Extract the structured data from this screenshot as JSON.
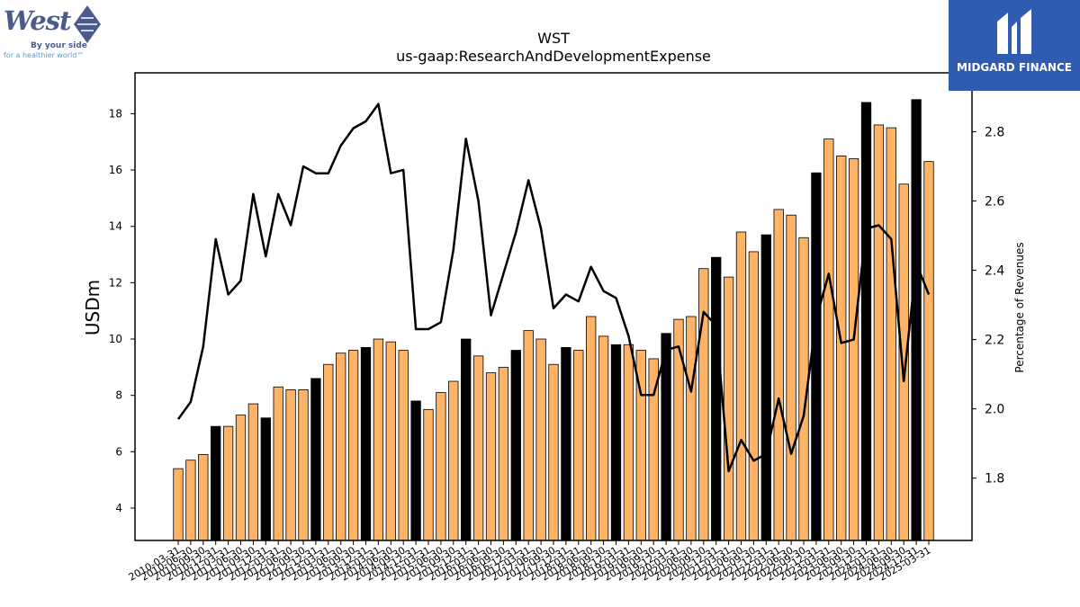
{
  "title": "WST",
  "subtitle": "us-gaap:ResearchAndDevelopmentExpense",
  "logos": {
    "left": {
      "name": "West",
      "tagline1": "By your side",
      "tagline2": "for a healthier world™"
    },
    "right": {
      "name": "MIDGARD FINANCE",
      "bg_color": "#2f5bb0"
    }
  },
  "chart_data": {
    "type": "bar",
    "ylabel": "USDm",
    "y2label": "Percentage of Revenues",
    "ylim": [
      2.85,
      19.45
    ],
    "y2lim": [
      1.62,
      2.97
    ],
    "yticks": [
      4,
      6,
      8,
      10,
      12,
      14,
      16,
      18
    ],
    "y2ticks": [
      1.8,
      2.0,
      2.2,
      2.4,
      2.6,
      2.8
    ],
    "bar_color": "#ffb366",
    "q4_bar_color": "#000000",
    "line_color": "#000000",
    "categories": [
      "2010-03-31",
      "2010-06-30",
      "2010-09-30",
      "2010-12-31",
      "2011-03-31",
      "2011-06-30",
      "2011-09-30",
      "2011-12-31",
      "2012-03-31",
      "2012-06-30",
      "2012-09-30",
      "2012-12-31",
      "2013-03-31",
      "2013-06-30",
      "2013-09-30",
      "2013-12-31",
      "2014-03-31",
      "2014-06-30",
      "2014-09-30",
      "2014-12-31",
      "2015-03-31",
      "2015-06-30",
      "2015-09-30",
      "2015-12-31",
      "2016-03-31",
      "2016-06-30",
      "2016-09-30",
      "2016-12-31",
      "2017-03-31",
      "2017-06-30",
      "2017-09-30",
      "2017-12-31",
      "2018-03-31",
      "2018-06-30",
      "2018-09-30",
      "2018-12-31",
      "2019-03-31",
      "2019-06-30",
      "2019-09-30",
      "2019-12-31",
      "2020-03-31",
      "2020-06-30",
      "2020-09-30",
      "2020-12-31",
      "2021-03-31",
      "2021-06-30",
      "2021-09-30",
      "2021-12-31",
      "2022-03-31",
      "2022-06-30",
      "2022-09-30",
      "2022-12-31",
      "2023-03-31",
      "2023-06-30",
      "2023-09-30",
      "2023-12-31",
      "2024-03-31",
      "2024-06-30",
      "2024-09-30",
      "2024-12-31",
      "2025-03-31"
    ],
    "values": [
      5.4,
      5.7,
      5.9,
      6.9,
      6.9,
      7.3,
      7.7,
      7.2,
      8.3,
      8.2,
      8.2,
      8.6,
      9.1,
      9.5,
      9.6,
      9.7,
      10.0,
      9.9,
      9.6,
      7.8,
      7.5,
      8.1,
      8.5,
      10.0,
      9.4,
      8.8,
      9.0,
      9.6,
      10.3,
      10.0,
      9.1,
      9.7,
      9.6,
      10.8,
      10.1,
      9.8,
      9.8,
      9.6,
      9.3,
      10.2,
      10.7,
      10.8,
      12.5,
      12.9,
      12.2,
      13.8,
      13.1,
      13.7,
      14.6,
      14.4,
      13.6,
      15.9,
      17.1,
      16.5,
      16.4,
      18.4,
      17.6,
      17.5,
      15.5,
      18.5,
      16.3
    ],
    "q4_flags": [
      0,
      0,
      0,
      1,
      0,
      0,
      0,
      1,
      0,
      0,
      0,
      1,
      0,
      0,
      0,
      1,
      0,
      0,
      0,
      1,
      0,
      0,
      0,
      1,
      0,
      0,
      0,
      1,
      0,
      0,
      0,
      1,
      0,
      0,
      0,
      1,
      0,
      0,
      0,
      1,
      0,
      0,
      0,
      1,
      0,
      0,
      0,
      1,
      0,
      0,
      0,
      1,
      0,
      0,
      0,
      1,
      0,
      0,
      0,
      1,
      0
    ],
    "line_values": [
      1.97,
      2.02,
      2.18,
      2.49,
      2.33,
      2.37,
      2.62,
      2.44,
      2.62,
      2.53,
      2.7,
      2.68,
      2.68,
      2.76,
      2.81,
      2.83,
      2.88,
      2.68,
      2.69,
      2.23,
      2.23,
      2.25,
      2.46,
      2.78,
      2.6,
      2.27,
      2.39,
      2.51,
      2.66,
      2.52,
      2.29,
      2.33,
      2.31,
      2.41,
      2.34,
      2.32,
      2.21,
      2.04,
      2.04,
      2.17,
      2.18,
      2.05,
      2.28,
      2.24,
      1.82,
      1.91,
      1.85,
      1.87,
      2.03,
      1.87,
      1.98,
      2.26,
      2.39,
      2.19,
      2.2,
      2.52,
      2.53,
      2.49,
      2.08,
      2.42,
      2.33
    ]
  }
}
